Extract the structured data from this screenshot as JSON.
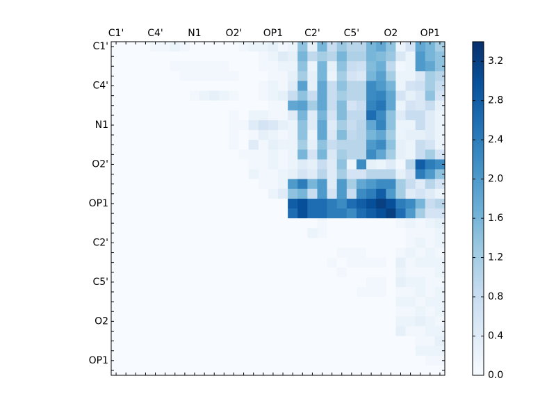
{
  "chart_data": {
    "type": "heatmap",
    "categories": [
      "C1'",
      null,
      null,
      null,
      "C4'",
      null,
      null,
      null,
      "N1",
      null,
      null,
      null,
      "O2'",
      null,
      null,
      null,
      "OP1",
      null,
      null,
      null,
      "C2'",
      null,
      null,
      null,
      "C5'",
      null,
      null,
      null,
      "O2",
      null,
      null,
      null,
      "OP1",
      null
    ],
    "colormap": "Blues",
    "clim": [
      0,
      3.4
    ],
    "cticks": [
      {
        "value": 0,
        "label": "0.0"
      },
      0.4,
      0.8,
      1.2,
      1.6,
      {
        "value": 2,
        "label": "2.0"
      },
      2.4,
      2.8,
      3.2
    ],
    "values": [
      [
        0,
        0,
        0,
        0,
        0.1,
        0.1,
        0.2,
        0.1,
        0,
        0,
        0,
        0,
        0,
        0.1,
        0.2,
        0.2,
        0.3,
        0.1,
        0.2,
        1.4,
        0.3,
        1.6,
        0.8,
        1.3,
        1.0,
        1.0,
        1.6,
        1.8,
        1.4,
        0.2,
        0.6,
        1.8,
        1.6,
        1.2
      ],
      [
        0,
        0,
        0,
        0,
        0,
        0,
        0,
        0,
        0,
        0,
        0,
        0,
        0,
        0,
        0,
        0.1,
        0.2,
        0.4,
        0.3,
        1.6,
        0.9,
        1.2,
        1.0,
        1.6,
        1.1,
        1.1,
        1.6,
        1.5,
        1.3,
        0.5,
        0.2,
        2.0,
        1.6,
        1.4
      ],
      [
        0,
        0,
        0,
        0,
        0,
        0,
        0.1,
        0.1,
        0.1,
        0.1,
        0.1,
        0.1,
        0,
        0,
        0,
        0.1,
        0.1,
        0.2,
        0.2,
        1.4,
        0.2,
        1.6,
        0.3,
        1.4,
        0.8,
        0.7,
        1.5,
        1.7,
        0.9,
        0.1,
        0.2,
        2.0,
        1.8,
        1.4
      ],
      [
        0,
        0,
        0,
        0,
        0,
        0,
        0,
        0.1,
        0.1,
        0.1,
        0.1,
        0.1,
        0.1,
        0,
        0,
        0,
        0.1,
        0.1,
        0.3,
        1.2,
        0.3,
        1.6,
        0.2,
        1.2,
        0.6,
        0.5,
        1.6,
        1.9,
        1.2,
        0.2,
        0.2,
        0.5,
        1.2,
        1.0
      ],
      [
        0,
        0,
        0,
        0,
        0,
        0,
        0,
        0,
        0,
        0,
        0,
        0,
        0,
        0,
        0,
        0.1,
        0.2,
        0.1,
        0.4,
        1.9,
        0.3,
        1.8,
        0.8,
        1.4,
        1.0,
        1.0,
        2.2,
        2.0,
        1.6,
        0.2,
        0.6,
        0.7,
        1.2,
        0.8
      ],
      [
        0,
        0,
        0,
        0,
        0,
        0,
        0,
        0,
        0.1,
        0.2,
        0.3,
        0.2,
        0.1,
        0,
        0,
        0.1,
        0.2,
        0.3,
        0.8,
        1.4,
        0.8,
        1.8,
        0.8,
        1.2,
        1.0,
        1.0,
        2.2,
        2.3,
        1.8,
        0.6,
        0.3,
        0.5,
        1.4,
        0.6
      ],
      [
        0,
        0,
        0,
        0,
        0,
        0,
        0,
        0,
        0,
        0,
        0,
        0,
        0,
        0,
        0,
        0,
        0.1,
        0.1,
        1.8,
        1.9,
        1.2,
        1.8,
        0.8,
        1.5,
        0.6,
        0.8,
        2.3,
        2.5,
        1.8,
        0.2,
        0.6,
        0.5,
        0.8,
        0.3
      ],
      [
        0,
        0,
        0,
        0,
        0,
        0,
        0,
        0,
        0,
        0,
        0,
        0,
        0.1,
        0,
        0.2,
        0.2,
        0.1,
        0.1,
        0.4,
        1.6,
        0.4,
        1.6,
        0.6,
        1.5,
        0.9,
        0.9,
        2.6,
        2.2,
        1.4,
        0.4,
        0.8,
        0.8,
        0.4,
        0.2
      ],
      [
        0,
        0,
        0,
        0,
        0,
        0,
        0,
        0,
        0,
        0,
        0,
        0,
        0.1,
        0.1,
        0.4,
        0.6,
        0.5,
        0.3,
        0.2,
        1.4,
        0.4,
        1.8,
        0.4,
        1.2,
        0.8,
        1.0,
        1.8,
        2.3,
        1.4,
        0.2,
        0.2,
        0.8,
        0.4,
        0.2
      ],
      [
        0,
        0,
        0,
        0,
        0,
        0,
        0,
        0,
        0,
        0,
        0,
        0,
        0.1,
        0,
        0.1,
        0.3,
        0.2,
        0.1,
        0.2,
        1.4,
        0.2,
        1.8,
        0.5,
        1.5,
        0.9,
        1.0,
        1.6,
        1.8,
        1.2,
        0.2,
        0.3,
        0.3,
        0.4,
        0.2
      ],
      [
        0,
        0,
        0,
        0,
        0,
        0,
        0,
        0,
        0,
        0,
        0,
        0,
        0.1,
        0,
        0.4,
        0.1,
        0.3,
        0.2,
        0.2,
        1.2,
        0.3,
        1.4,
        0.8,
        1.0,
        1.0,
        1.0,
        2.0,
        2.2,
        1.4,
        0.3,
        0.2,
        0.8,
        0.6,
        0.2
      ],
      [
        0,
        0,
        0,
        0,
        0,
        0,
        0,
        0,
        0,
        0,
        0,
        0,
        0,
        0.1,
        0.1,
        0.1,
        0.2,
        0.1,
        0.2,
        1.6,
        0.6,
        1.6,
        0.5,
        1.2,
        1.0,
        1.0,
        2.2,
        1.8,
        1.2,
        0.3,
        0.2,
        0.8,
        1.2,
        0.6
      ],
      [
        0,
        0,
        0,
        0,
        0,
        0,
        0,
        0,
        0,
        0,
        0,
        0,
        0,
        0,
        0.1,
        0.1,
        0.2,
        0.1,
        0.2,
        0.4,
        0.3,
        0.8,
        0.4,
        1.4,
        0.2,
        2.2,
        0.3,
        0.2,
        0.4,
        0.1,
        1.0,
        2.8,
        2.4,
        2.2
      ],
      [
        0,
        0,
        0,
        0,
        0,
        0,
        0,
        0,
        0,
        0,
        0,
        0,
        0,
        0,
        0.2,
        0.1,
        0.1,
        0.2,
        0.3,
        0.6,
        0.4,
        1.0,
        0.4,
        1.2,
        0.6,
        0.6,
        1.0,
        1.0,
        1.0,
        0.3,
        0.6,
        2.4,
        2.0,
        1.4
      ],
      [
        0,
        0,
        0,
        0,
        0,
        0,
        0,
        0,
        0,
        0,
        0,
        0,
        0,
        0,
        0,
        0.1,
        0.1,
        0.2,
        2.0,
        2.4,
        1.6,
        2.0,
        0.4,
        2.0,
        1.2,
        1.8,
        2.0,
        2.2,
        2.2,
        1.2,
        0.8,
        0.4,
        1.0,
        0.6
      ],
      [
        0,
        0,
        0,
        0,
        0,
        0,
        0,
        0,
        0,
        0,
        0,
        0,
        0,
        0,
        0,
        0,
        0.2,
        0.4,
        1.4,
        1.6,
        0.8,
        2.0,
        0.6,
        2.0,
        0.8,
        2.2,
        2.4,
        2.8,
        2.0,
        1.2,
        0.4,
        0.6,
        0.4,
        0.2
      ],
      [
        0,
        0,
        0,
        0,
        0,
        0,
        0,
        0,
        0,
        0,
        0,
        0,
        0,
        0,
        0,
        0,
        0,
        0,
        2.8,
        3.0,
        2.6,
        2.6,
        2.4,
        2.2,
        2.6,
        2.8,
        3.0,
        3.2,
        3.0,
        2.4,
        2.2,
        1.6,
        0.8,
        1.0
      ],
      [
        0,
        0,
        0,
        0,
        0,
        0,
        0,
        0,
        0,
        0,
        0,
        0,
        0,
        0,
        0,
        0,
        0,
        0,
        2.6,
        3.0,
        2.6,
        2.6,
        2.4,
        2.4,
        2.2,
        2.6,
        2.8,
        3.0,
        3.2,
        2.6,
        2.0,
        1.2,
        0.6,
        0.6
      ],
      [
        0,
        0,
        0,
        0,
        0,
        0,
        0,
        0,
        0,
        0,
        0,
        0,
        0,
        0,
        0,
        0,
        0,
        0,
        0,
        0,
        0,
        0.1,
        0,
        0,
        0,
        0,
        0,
        0,
        0,
        0.1,
        0.2,
        0.1,
        0.2,
        0.3
      ],
      [
        0,
        0,
        0,
        0,
        0,
        0,
        0,
        0,
        0,
        0,
        0,
        0,
        0,
        0,
        0,
        0,
        0,
        0,
        0,
        0,
        0.2,
        0.1,
        0,
        0,
        0,
        0,
        0,
        0,
        0,
        0,
        0.1,
        0.1,
        0.1,
        0.2
      ],
      [
        0,
        0,
        0,
        0,
        0,
        0,
        0,
        0,
        0,
        0,
        0,
        0,
        0,
        0,
        0,
        0,
        0,
        0,
        0,
        0,
        0,
        0,
        0,
        0,
        0,
        0,
        0,
        0,
        0,
        0,
        0.1,
        0.2,
        0.1,
        0.2
      ],
      [
        0,
        0,
        0,
        0,
        0,
        0,
        0,
        0,
        0,
        0,
        0,
        0,
        0,
        0,
        0,
        0,
        0,
        0,
        0,
        0,
        0,
        0,
        0,
        0.1,
        0.1,
        0.1,
        0,
        0,
        0,
        0.1,
        0.2,
        0.1,
        0.2,
        0.1
      ],
      [
        0,
        0,
        0,
        0,
        0,
        0,
        0,
        0,
        0,
        0,
        0,
        0,
        0,
        0,
        0,
        0,
        0,
        0,
        0,
        0,
        0,
        0,
        0.1,
        0,
        0.1,
        0.1,
        0.1,
        0.1,
        0,
        0.3,
        0.1,
        0.2,
        0.2,
        0.2
      ],
      [
        0,
        0,
        0,
        0,
        0,
        0,
        0,
        0,
        0,
        0,
        0,
        0,
        0,
        0,
        0,
        0,
        0,
        0,
        0,
        0,
        0,
        0,
        0,
        0.1,
        0,
        0,
        0,
        0,
        0,
        0.2,
        0.1,
        0.1,
        0.1,
        0.2
      ],
      [
        0,
        0,
        0,
        0,
        0,
        0,
        0,
        0,
        0,
        0,
        0,
        0,
        0,
        0,
        0,
        0,
        0,
        0,
        0,
        0,
        0,
        0,
        0,
        0,
        0,
        0,
        0.1,
        0.1,
        0,
        0.3,
        0.2,
        0.2,
        0.1,
        0.1
      ],
      [
        0,
        0,
        0,
        0,
        0,
        0,
        0,
        0,
        0,
        0,
        0,
        0,
        0,
        0,
        0,
        0,
        0,
        0,
        0,
        0,
        0,
        0,
        0,
        0,
        0,
        0.1,
        0.1,
        0.1,
        0,
        0.1,
        0.1,
        0.2,
        0.1,
        0.2
      ],
      [
        0,
        0,
        0,
        0,
        0,
        0,
        0,
        0,
        0,
        0,
        0,
        0,
        0,
        0,
        0,
        0,
        0,
        0,
        0,
        0,
        0,
        0,
        0,
        0,
        0,
        0,
        0,
        0,
        0,
        0.2,
        0.2,
        0.1,
        0.2,
        0.2
      ],
      [
        0,
        0,
        0,
        0,
        0,
        0,
        0,
        0,
        0,
        0,
        0,
        0,
        0,
        0,
        0,
        0,
        0,
        0,
        0,
        0,
        0,
        0,
        0,
        0,
        0,
        0,
        0,
        0,
        0,
        0.1,
        0.1,
        0.2,
        0.1,
        0.2
      ],
      [
        0,
        0,
        0,
        0,
        0,
        0,
        0,
        0,
        0,
        0,
        0,
        0,
        0,
        0,
        0,
        0,
        0,
        0,
        0,
        0,
        0,
        0,
        0,
        0,
        0,
        0,
        0,
        0,
        0,
        0.2,
        0.2,
        0.3,
        0.2,
        0.1
      ],
      [
        0,
        0,
        0,
        0,
        0,
        0,
        0,
        0,
        0,
        0,
        0,
        0,
        0,
        0,
        0,
        0,
        0,
        0,
        0,
        0,
        0,
        0,
        0,
        0,
        0,
        0,
        0,
        0,
        0,
        0.3,
        0.1,
        0.1,
        0.2,
        0.2
      ],
      [
        0,
        0,
        0,
        0,
        0,
        0,
        0,
        0,
        0,
        0,
        0,
        0,
        0,
        0,
        0,
        0,
        0,
        0,
        0,
        0,
        0,
        0,
        0,
        0,
        0,
        0,
        0,
        0,
        0,
        0,
        0,
        0.1,
        0.1,
        0.3
      ],
      [
        0,
        0,
        0,
        0,
        0,
        0,
        0,
        0,
        0,
        0,
        0,
        0,
        0,
        0,
        0,
        0,
        0,
        0,
        0,
        0,
        0,
        0,
        0,
        0,
        0,
        0,
        0,
        0,
        0,
        0,
        0,
        0.2,
        0.2,
        0.2
      ],
      [
        0,
        0,
        0,
        0,
        0,
        0,
        0,
        0,
        0,
        0,
        0,
        0,
        0,
        0,
        0,
        0,
        0,
        0,
        0,
        0,
        0,
        0,
        0,
        0,
        0,
        0,
        0,
        0,
        0,
        0,
        0,
        0,
        0.1,
        0.1
      ],
      [
        0,
        0,
        0,
        0,
        0,
        0,
        0,
        0,
        0,
        0,
        0,
        0,
        0,
        0,
        0,
        0,
        0,
        0,
        0,
        0,
        0,
        0,
        0,
        0,
        0,
        0,
        0,
        0,
        0,
        0,
        0,
        0,
        0,
        0
      ]
    ]
  }
}
